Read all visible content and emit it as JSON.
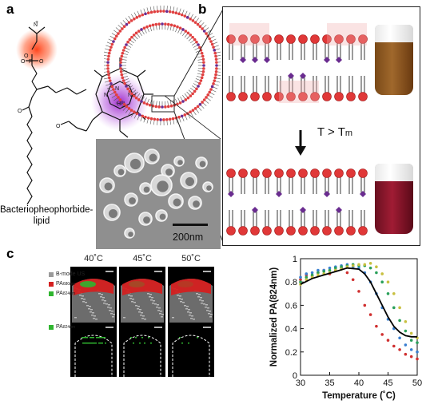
{
  "panels": {
    "a": "a",
    "b": "b",
    "c": "c"
  },
  "molecule": {
    "name_line1": "Bacteriopheophorbide-",
    "name_line2": "lipid"
  },
  "bilayer": {
    "transition_prefix": "T > T",
    "transition_subscript": "m"
  },
  "sem": {
    "scale_bar": "200nm"
  },
  "imaging": {
    "temperatures": [
      "40˚C",
      "45˚C",
      "50˚C"
    ],
    "legend_top": [
      {
        "label": "B-mode US",
        "sub": "",
        "color": "#9a9a9a"
      },
      {
        "label": "PA",
        "sub": "680nm",
        "color": "#d42020"
      },
      {
        "label": "PA",
        "sub": "824nm",
        "color": "#2fb52f"
      }
    ],
    "legend_bottom": [
      {
        "label": "PA",
        "sub": "824nm",
        "color": "#2fb52f"
      }
    ]
  },
  "chart_data": {
    "type": "scatter",
    "xlabel": "Temperature (˚C)",
    "ylabel": "Normalized PA(824nm)",
    "xlim": [
      30,
      50
    ],
    "ylim": [
      0,
      1
    ],
    "xticks": [
      30,
      35,
      40,
      45,
      50
    ],
    "yticks": [
      0,
      0.2,
      0.4,
      0.6,
      0.8,
      1
    ],
    "grid": false,
    "series": [
      {
        "color": "#d03030",
        "x": [
          30,
          31,
          32,
          33,
          34,
          35,
          36,
          37,
          38,
          39,
          40,
          41,
          42,
          43,
          44,
          45,
          46,
          47,
          48,
          49,
          50
        ],
        "y": [
          0.82,
          0.86,
          0.85,
          0.88,
          0.9,
          0.87,
          0.9,
          0.92,
          0.88,
          0.82,
          0.72,
          0.6,
          0.52,
          0.42,
          0.35,
          0.3,
          0.25,
          0.22,
          0.18,
          0.16,
          0.14
        ]
      },
      {
        "color": "#3a7fd0",
        "x": [
          30,
          31,
          32,
          33,
          34,
          35,
          36,
          37,
          38,
          39,
          40,
          41,
          42,
          43,
          44,
          45,
          46,
          47,
          48,
          49,
          50
        ],
        "y": [
          0.84,
          0.87,
          0.88,
          0.9,
          0.9,
          0.92,
          0.93,
          0.94,
          0.95,
          0.93,
          0.92,
          0.88,
          0.8,
          0.7,
          0.58,
          0.48,
          0.4,
          0.32,
          0.26,
          0.22,
          0.2
        ]
      },
      {
        "color": "#2aa05a",
        "x": [
          30,
          31,
          32,
          33,
          34,
          35,
          36,
          37,
          38,
          39,
          40,
          41,
          42,
          43,
          44,
          45,
          46,
          47,
          48,
          49,
          50
        ],
        "y": [
          0.8,
          0.84,
          0.86,
          0.88,
          0.89,
          0.9,
          0.92,
          0.93,
          0.94,
          0.95,
          0.94,
          0.94,
          0.92,
          0.88,
          0.8,
          0.7,
          0.58,
          0.47,
          0.38,
          0.3,
          0.28
        ]
      },
      {
        "color": "#c8c040",
        "x": [
          30,
          31,
          32,
          33,
          34,
          35,
          36,
          37,
          38,
          39,
          40,
          41,
          42,
          43,
          44,
          45,
          46,
          47,
          48,
          49,
          50
        ],
        "y": [
          0.78,
          0.82,
          0.84,
          0.86,
          0.87,
          0.88,
          0.9,
          0.91,
          0.93,
          0.94,
          0.95,
          0.95,
          0.96,
          0.93,
          0.87,
          0.8,
          0.7,
          0.58,
          0.46,
          0.36,
          0.32
        ]
      }
    ],
    "fit": {
      "color": "#000000",
      "x": [
        30,
        32,
        34,
        36,
        38,
        40,
        41,
        42,
        43,
        44,
        45,
        46,
        47,
        48,
        49,
        50
      ],
      "y": [
        0.78,
        0.83,
        0.86,
        0.89,
        0.92,
        0.91,
        0.87,
        0.8,
        0.7,
        0.6,
        0.5,
        0.42,
        0.37,
        0.34,
        0.33,
        0.33
      ]
    }
  }
}
